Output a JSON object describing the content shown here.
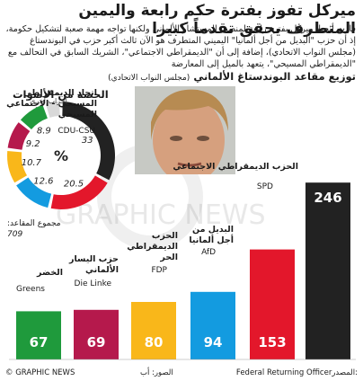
{
  "title": "ميركل تفوز بفترة حكم رابعة واليمين المتطرف يحقق تقدماً كبيرا",
  "intro": "فازت أنجيلا ميركل بفترة رابعة لمنصب المستشار الألماني ولكنها تواجه مهمة صعبة لتشكيل حكومة، إذ أن حزب \"البديل من أجل ألمانيا\" اليميني المتطرف هو الآن ثالث أكبر حزب في البوندستاغ (مجلس النواب الاتحادي)، إضافة إلى أن \"الديمقراطي الاجتماعي\"، الشريك السابق في التحالف مع \"الديمقراطي المسيحي\"، يتعهد بالميل إلى المعارضة",
  "bar_title": "توزيع مقاعد البوندستاغ الألماني",
  "bar_title_sub": "(مجلس النواب الاتحادي)",
  "donut_title": "الحصة من الأصوات",
  "other_parties": "أحزاب أخرى",
  "percent_symbol": "%",
  "total_seats_label": "مجموع المقاعد:",
  "total_seats": "709",
  "watermark": "GRAPHIC NEWS",
  "footer": {
    "copyright": "© GRAPHIC NEWS",
    "pictures": "الصور: أب",
    "source_label": "المصدر:",
    "source": "Federal Returning Officer"
  },
  "parties": [
    {
      "name_ar": "اتحاد الديمقراطي المسيحي - الاجتماعي المسيحي",
      "name_en": "CDU-CSU",
      "seats": 246,
      "share": 33.0,
      "color": "#222222"
    },
    {
      "name_ar": "الحزب الديمقراطي الاجتماعي",
      "name_en": "SPD",
      "seats": 153,
      "share": 20.5,
      "color": "#e3172b"
    },
    {
      "name_ar": "البديل من أجل ألمانيا",
      "name_en": "AfD",
      "seats": 94,
      "share": 12.6,
      "color": "#139be0"
    },
    {
      "name_ar": "الحزب الديمقراطي الحر",
      "name_en": "FDP",
      "seats": 80,
      "share": 10.7,
      "color": "#f9b71a"
    },
    {
      "name_ar": "حزب اليسار الألماني",
      "name_en": "Die Linke",
      "seats": 69,
      "share": 9.2,
      "color": "#b5194c"
    },
    {
      "name_ar": "الخضر",
      "name_en": "Greens",
      "seats": 67,
      "share": 8.9,
      "color": "#1f9a3c"
    },
    {
      "name_ar": "أحزاب أخرى",
      "name_en": "",
      "seats": 0,
      "share": 5.1,
      "color": "#d9d9d9"
    }
  ],
  "chart_data": [
    {
      "type": "bar",
      "title": "توزيع مقاعد البوندستاغ الألماني (مجلس النواب الاتحادي)",
      "categories": [
        "CDU-CSU",
        "SPD",
        "AfD",
        "FDP",
        "Die Linke",
        "Greens"
      ],
      "values": [
        246,
        153,
        94,
        80,
        69,
        67
      ],
      "total": 709
    },
    {
      "type": "pie",
      "title": "الحصة من الأصوات",
      "categories": [
        "CDU-CSU",
        "SPD",
        "AfD",
        "FDP",
        "Die Linke",
        "Greens",
        "أحزاب أخرى"
      ],
      "values": [
        33,
        20.5,
        12.6,
        10.7,
        9.2,
        8.9,
        5.1
      ],
      "unit": "%"
    }
  ]
}
